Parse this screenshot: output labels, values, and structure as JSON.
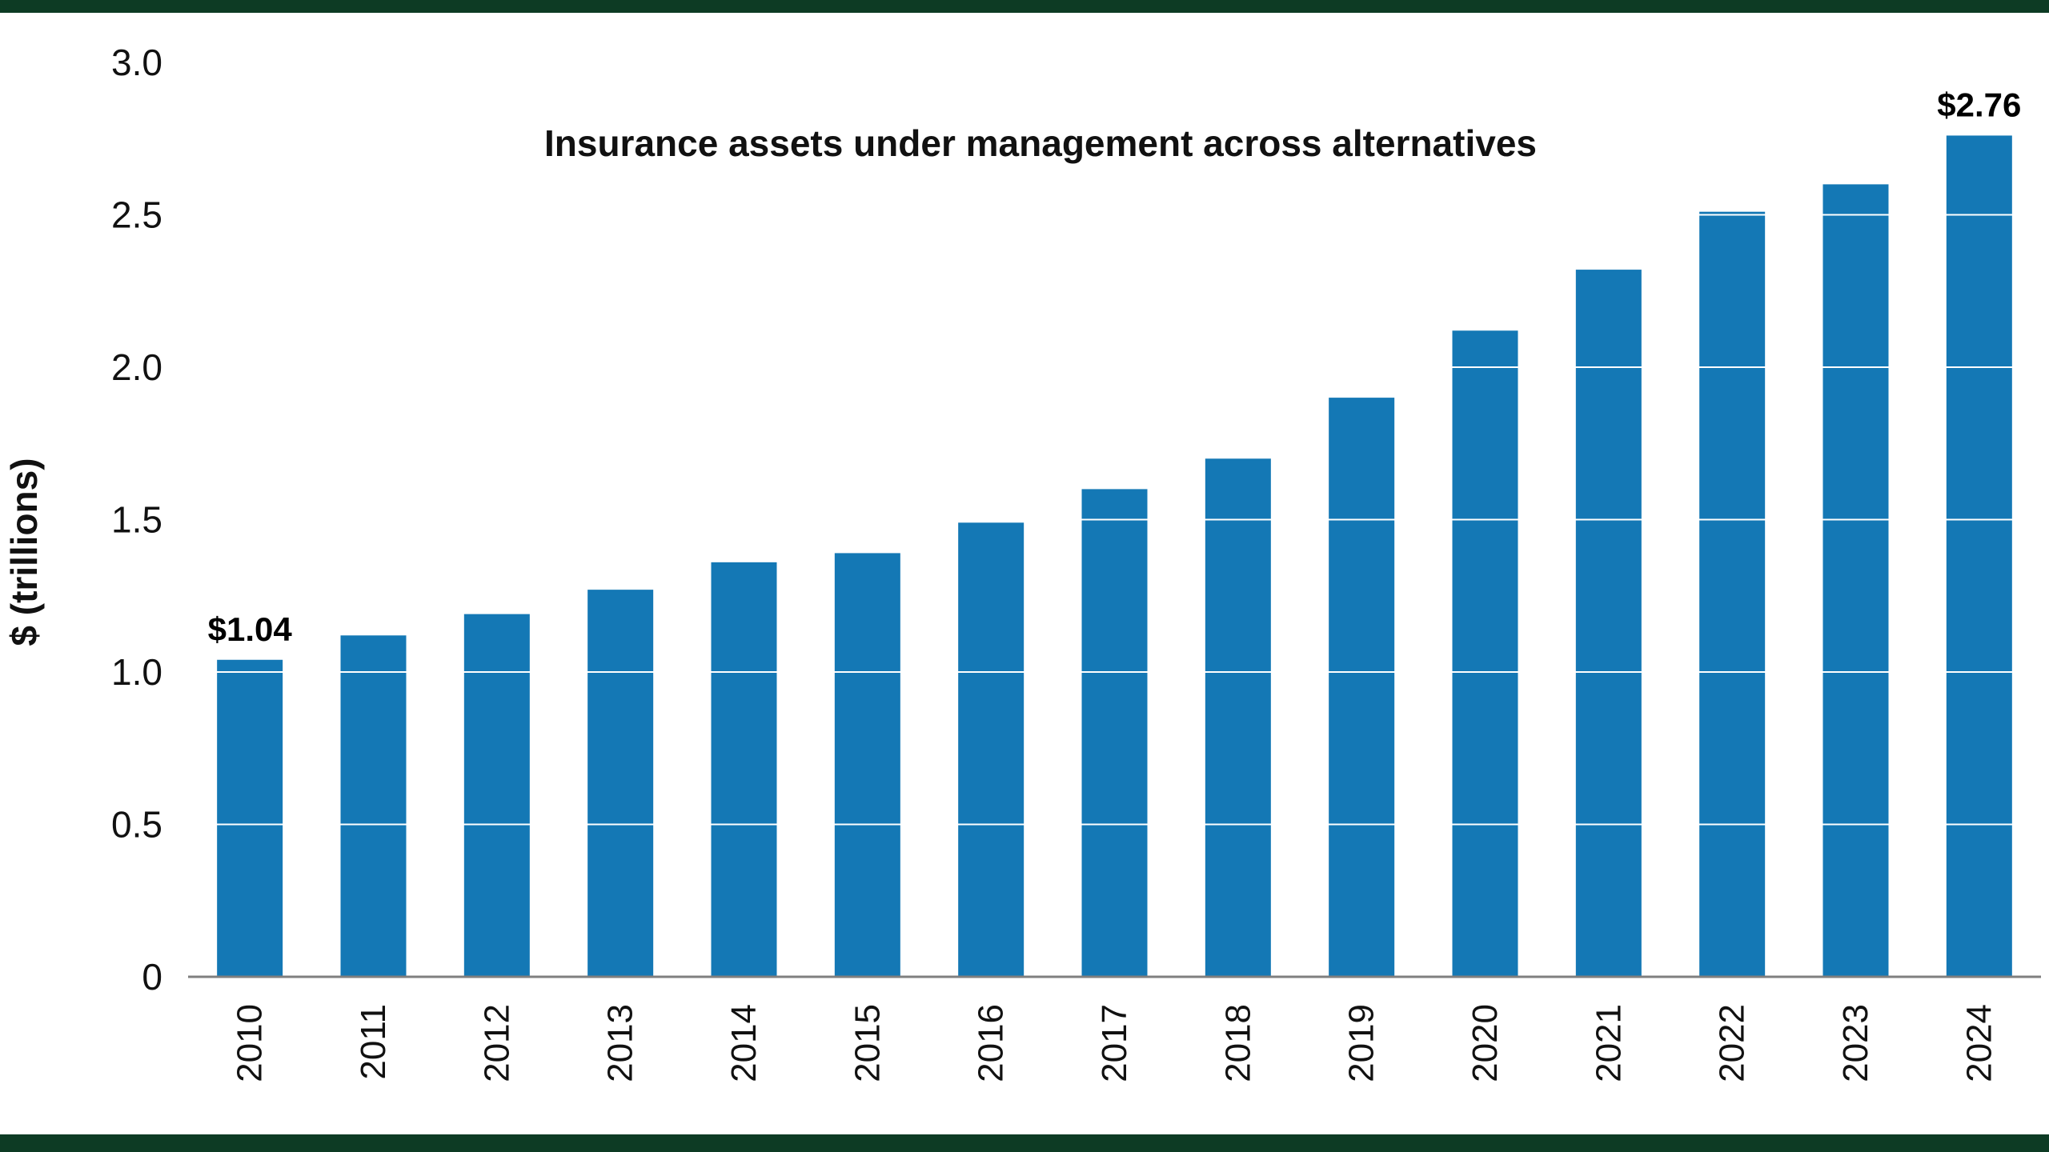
{
  "chart_data": {
    "type": "bar",
    "title": "Insurance assets under management across alternatives",
    "xlabel": "",
    "ylabel": "$ (trillions)",
    "categories": [
      "2010",
      "2011",
      "2012",
      "2013",
      "2014",
      "2015",
      "2016",
      "2017",
      "2018",
      "2019",
      "2020",
      "2021",
      "2022",
      "2023",
      "2024"
    ],
    "values": [
      1.04,
      1.12,
      1.19,
      1.27,
      1.36,
      1.39,
      1.49,
      1.6,
      1.7,
      1.9,
      2.12,
      2.32,
      2.51,
      2.6,
      2.76
    ],
    "ylim": [
      0,
      3.0
    ],
    "yticks": [
      0,
      0.5,
      1.0,
      1.5,
      2.0,
      2.5,
      3.0
    ],
    "ytick_labels": [
      "0",
      "0.5",
      "1.0",
      "1.5",
      "2.0",
      "2.5",
      "3.0"
    ],
    "grid": true,
    "legend": "none",
    "annotations": [
      {
        "index": 0,
        "label": "$1.04"
      },
      {
        "index": 14,
        "label": "$2.76"
      }
    ]
  },
  "colors": {
    "bar": "#1478b5",
    "grid_on_background": "#d6d6d6",
    "grid_over_bars": "#ffffff",
    "axis_line": "#7f7f7f",
    "text": "#111111",
    "edge_strip": "#0d3b24",
    "background": "#ffffff"
  }
}
